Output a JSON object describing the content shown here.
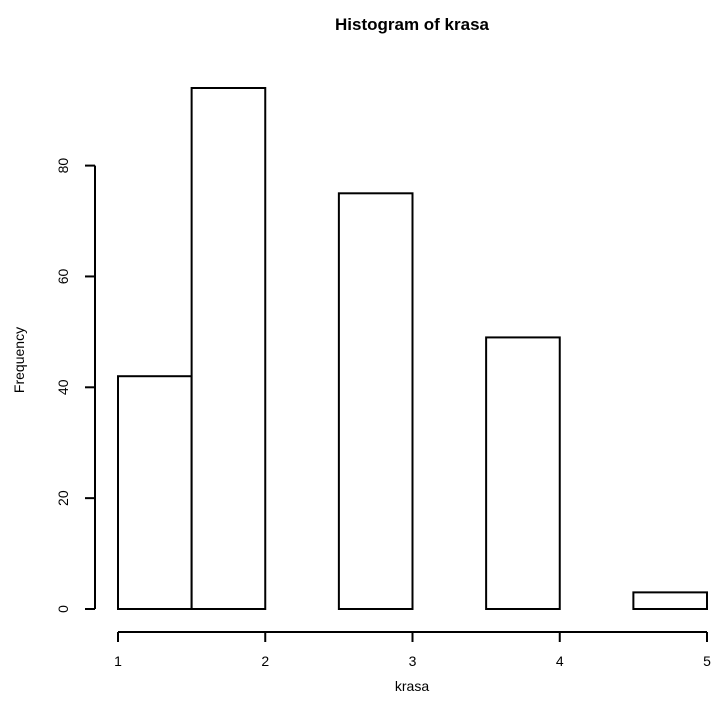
{
  "chart_data": {
    "type": "bar",
    "title": "Histogram of krasa",
    "xlabel": "krasa",
    "ylabel": "Frequency",
    "bins": [
      {
        "start": 1.0,
        "end": 1.5,
        "count": 42
      },
      {
        "start": 1.5,
        "end": 2.0,
        "count": 94
      },
      {
        "start": 2.0,
        "end": 2.5,
        "count": 0
      },
      {
        "start": 2.5,
        "end": 3.0,
        "count": 75
      },
      {
        "start": 3.0,
        "end": 3.5,
        "count": 0
      },
      {
        "start": 3.5,
        "end": 4.0,
        "count": 49
      },
      {
        "start": 4.0,
        "end": 4.5,
        "count": 0
      },
      {
        "start": 4.5,
        "end": 5.0,
        "count": 3
      }
    ],
    "xlim": [
      1,
      5
    ],
    "ylim": [
      0,
      94
    ],
    "x_ticks": [
      1,
      2,
      3,
      4,
      5
    ],
    "y_ticks": [
      0,
      20,
      40,
      60,
      80
    ],
    "grid": false,
    "colors": {
      "bar_fill": "#ffffff",
      "bar_stroke": "#000000",
      "axis": "#000000"
    }
  }
}
